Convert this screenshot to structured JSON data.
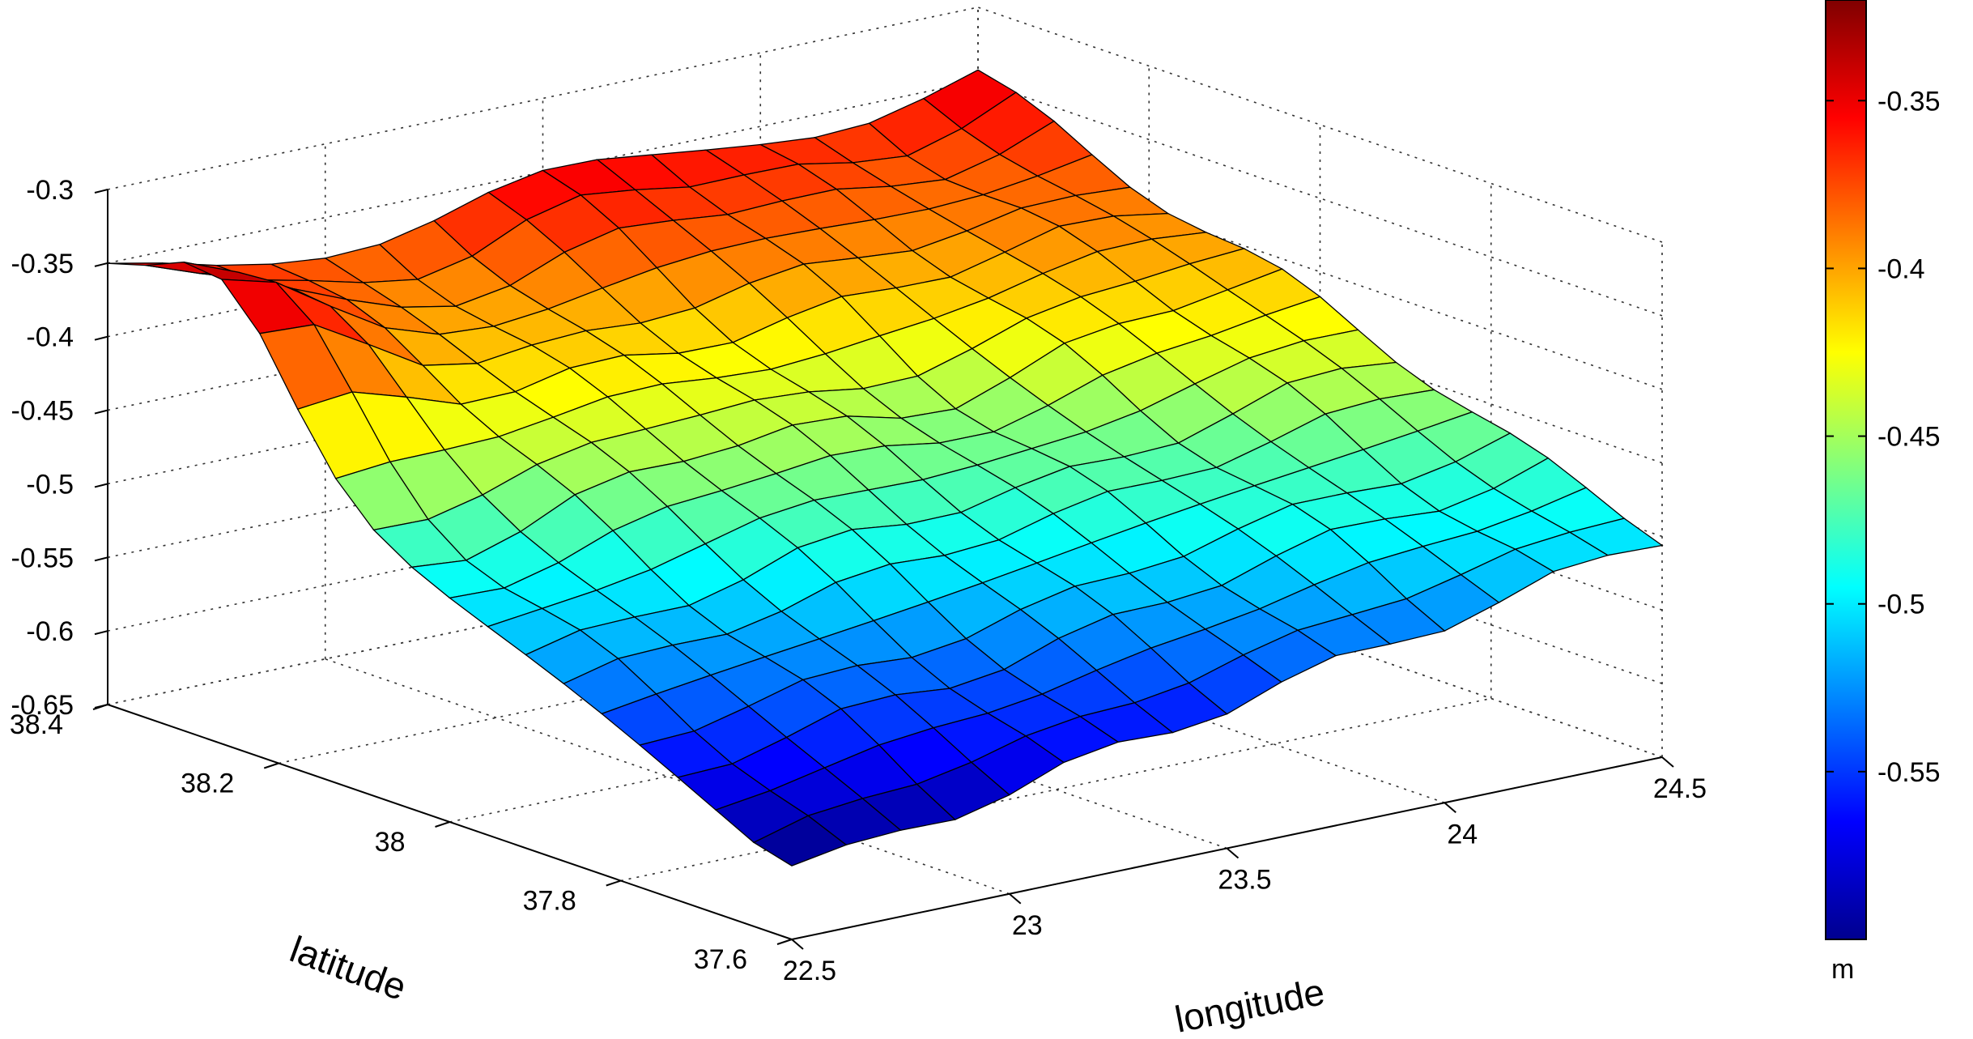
{
  "chart_data": {
    "type": "surface",
    "title": "",
    "xlabel": "longitude",
    "ylabel": "latitude",
    "zlabel": "",
    "xlim": [
      22.5,
      24.5
    ],
    "ylim": [
      37.6,
      38.4
    ],
    "zlim": [
      -0.65,
      -0.3
    ],
    "xticks": [
      "22.5",
      "23",
      "23.5",
      "24",
      "24.5"
    ],
    "yticks": [
      "37.6",
      "37.8",
      "38",
      "38.2",
      "38.4"
    ],
    "zticks": [
      "-0.3",
      "-0.35",
      "-0.4",
      "-0.45",
      "-0.5",
      "-0.55",
      "-0.6",
      "-0.65"
    ],
    "grid": true,
    "surface_summary": {
      "grid_size": [
        17,
        19
      ],
      "min": -0.6,
      "max": -0.32,
      "peak_location": "lon 22.5-22.6, lat 38.2-38.3",
      "min_location": "lon 22.5, lat 37.6"
    },
    "colorbar": {
      "colormap": "jet",
      "range": [
        -0.6,
        -0.32
      ],
      "ticks": [
        "-0.35",
        "-0.4",
        "-0.45",
        "-0.5",
        "-0.55"
      ],
      "unit": "m"
    }
  }
}
